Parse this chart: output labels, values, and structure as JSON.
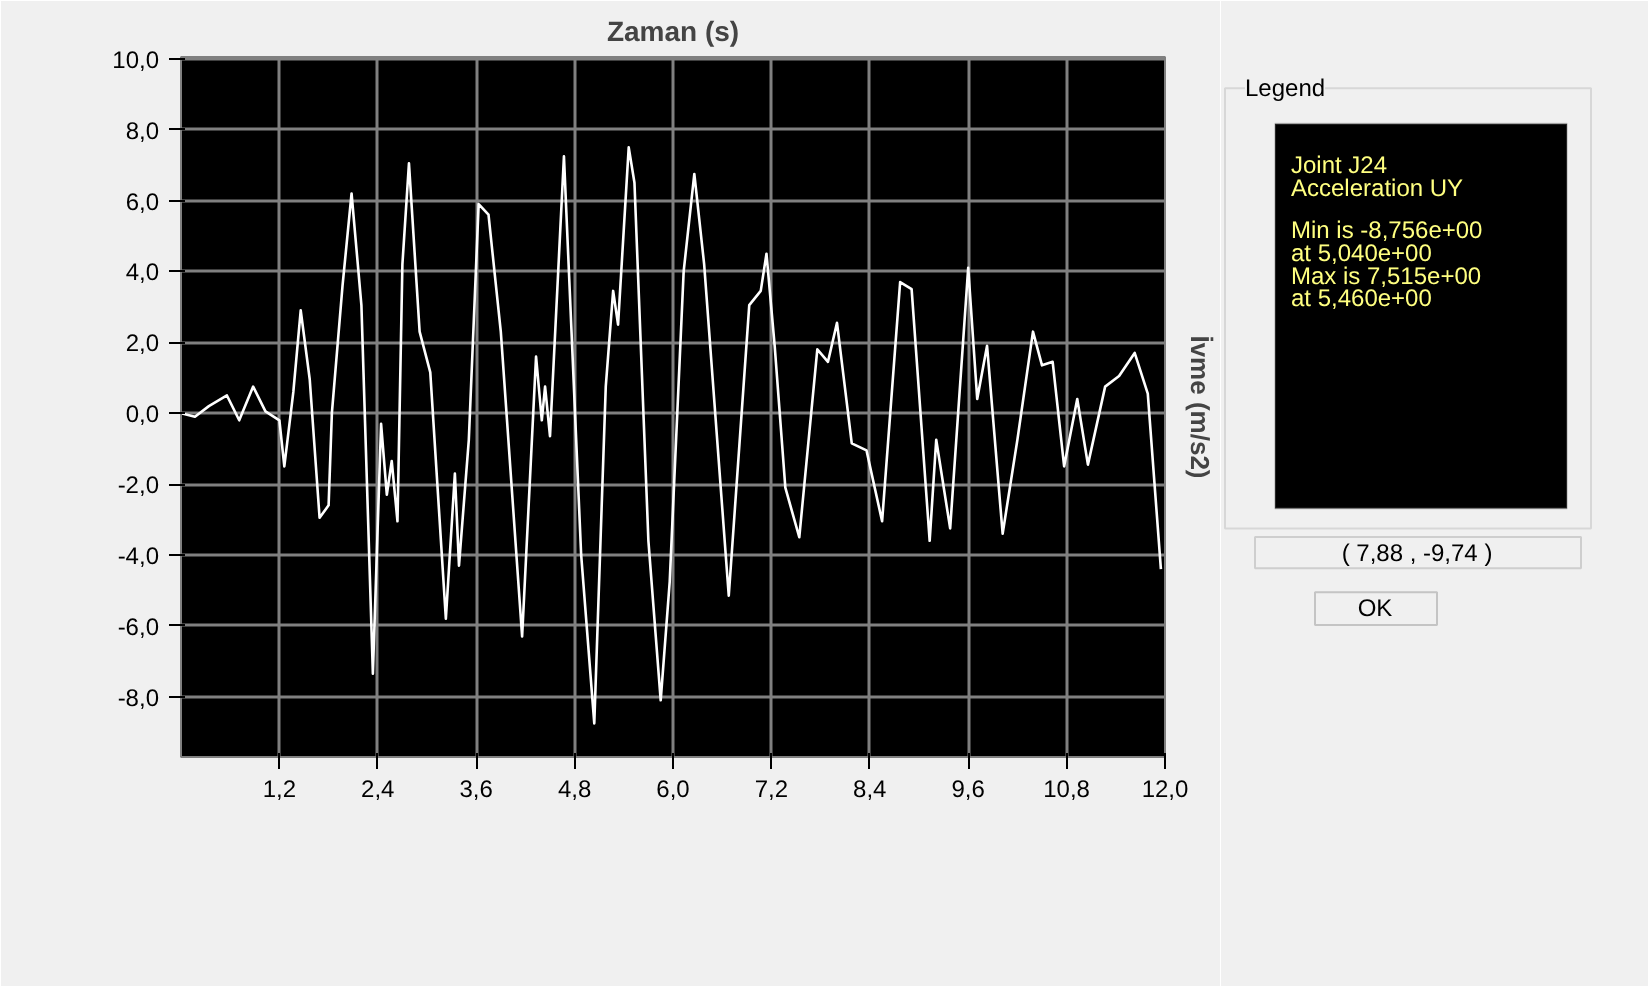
{
  "chart_data": {
    "type": "line",
    "title": "Zaman (s)",
    "ylabel": "İvme (m/s2)",
    "xlim": [
      0,
      12.0
    ],
    "ylim": [
      -9.7,
      10.05
    ],
    "xticks": [
      {
        "value": 1.2,
        "label": "1,2"
      },
      {
        "value": 2.4,
        "label": "2,4"
      },
      {
        "value": 3.6,
        "label": "3,6"
      },
      {
        "value": 4.8,
        "label": "4,8"
      },
      {
        "value": 6.0,
        "label": "6,0"
      },
      {
        "value": 7.2,
        "label": "7,2"
      },
      {
        "value": 8.4,
        "label": "8,4"
      },
      {
        "value": 9.6,
        "label": "9,6"
      },
      {
        "value": 10.8,
        "label": "10,8"
      },
      {
        "value": 12.0,
        "label": "12,0"
      }
    ],
    "yticks": [
      {
        "value": 10,
        "label": "10,0"
      },
      {
        "value": 8,
        "label": "8,0"
      },
      {
        "value": 6,
        "label": "6,0"
      },
      {
        "value": 4,
        "label": "4,0"
      },
      {
        "value": 2,
        "label": "2,0"
      },
      {
        "value": 0,
        "label": "0,0"
      },
      {
        "value": -2,
        "label": "-2,0"
      },
      {
        "value": -4,
        "label": "-4,0"
      },
      {
        "value": -6,
        "label": "-6,0"
      },
      {
        "value": -8,
        "label": "-8,0"
      }
    ],
    "grid": true,
    "series": [
      {
        "color": "#ffffff",
        "x": [
          0,
          0.17,
          0.34,
          0.56,
          0.71,
          0.88,
          1.03,
          1.2,
          1.26,
          1.37,
          1.46,
          1.57,
          1.69,
          1.8,
          1.84,
          1.97,
          2.08,
          2.2,
          2.34,
          2.44,
          2.51,
          2.57,
          2.64,
          2.7,
          2.78,
          2.91,
          3.04,
          3.23,
          3.34,
          3.39,
          3.51,
          3.63,
          3.75,
          3.9,
          4.16,
          4.33,
          4.4,
          4.44,
          4.5,
          4.67,
          4.88,
          5.04,
          5.18,
          5.27,
          5.33,
          5.46,
          5.53,
          5.7,
          5.85,
          5.96,
          6.13,
          6.26,
          6.38,
          6.68,
          6.93,
          7.07,
          7.14,
          7.24,
          7.37,
          7.54,
          7.76,
          7.89,
          8.0,
          8.18,
          8.36,
          8.55,
          8.77,
          8.91,
          9.13,
          9.21,
          9.38,
          9.6,
          9.71,
          9.83,
          10.02,
          10.2,
          10.39,
          10.5,
          10.63,
          10.77,
          10.93,
          11.06,
          11.27,
          11.44,
          11.63,
          11.79,
          11.95
        ],
        "values": [
          0,
          -0.1,
          0.2,
          0.5,
          -0.2,
          0.75,
          0.05,
          -0.2,
          -1.5,
          0.6,
          2.9,
          0.95,
          -2.95,
          -2.6,
          0,
          3.6,
          6.2,
          3.05,
          -7.35,
          -0.3,
          -2.3,
          -1.35,
          -3.05,
          4.2,
          7.05,
          2.3,
          1.15,
          -5.8,
          -1.7,
          -4.3,
          -0.75,
          5.9,
          5.6,
          2.3,
          -6.3,
          1.6,
          -0.2,
          0.75,
          -0.65,
          7.25,
          -4.0,
          -8.75,
          0.75,
          3.45,
          2.5,
          7.5,
          6.5,
          -3.6,
          -8.1,
          -4.75,
          4.0,
          6.75,
          4.2,
          -5.15,
          3.05,
          3.45,
          4.5,
          1.9,
          -2.1,
          -3.5,
          1.8,
          1.45,
          2.55,
          -0.85,
          -1.05,
          -3.05,
          3.7,
          3.5,
          -3.6,
          -0.75,
          -3.25,
          4.1,
          0.4,
          1.9,
          -3.4,
          -0.75,
          2.3,
          1.35,
          1.45,
          -1.5,
          0.4,
          -1.45,
          0.75,
          1.05,
          1.7,
          0.55,
          -4.4
        ]
      }
    ],
    "annotations": [
      "Legend",
      "Joint J24",
      "Acceleration  UY",
      "Min is -8,756e+00",
      "at 5,040e+00",
      "Max is 7,515e+00",
      "at 5,460e+00",
      "( 7,88 , -9,74 )",
      "OK"
    ]
  }
}
